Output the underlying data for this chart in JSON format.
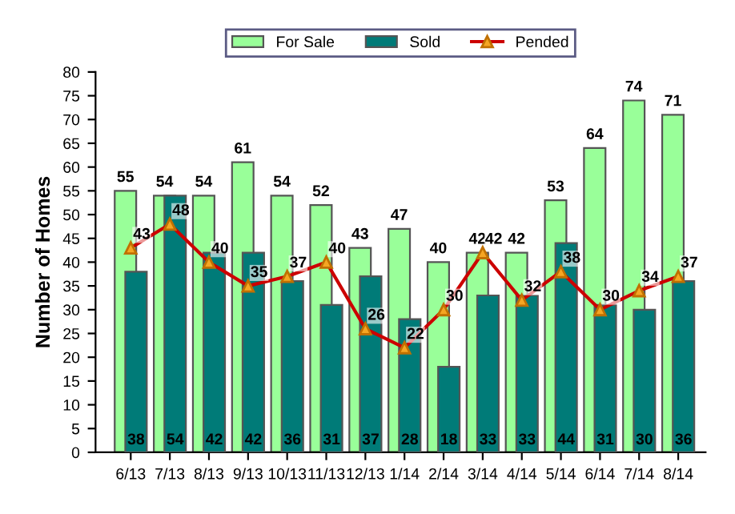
{
  "chart_data": {
    "type": "bar",
    "ylabel": "Number of Homes",
    "categories": [
      "6/13",
      "7/13",
      "8/13",
      "9/13",
      "10/13",
      "11/13",
      "12/13",
      "1/14",
      "2/14",
      "3/14",
      "4/14",
      "5/14",
      "6/14",
      "7/14",
      "8/14"
    ],
    "series": [
      {
        "name": "For Sale",
        "color": "#99ff99",
        "values": [
          55,
          54,
          54,
          61,
          54,
          52,
          43,
          47,
          40,
          42,
          42,
          53,
          64,
          74,
          71
        ]
      },
      {
        "name": "Sold",
        "color": "#007b78",
        "values": [
          38,
          54,
          42,
          42,
          36,
          31,
          37,
          28,
          18,
          33,
          33,
          44,
          31,
          30,
          36
        ]
      },
      {
        "name": "Pended",
        "type": "line",
        "color": "#cc0000",
        "values": [
          43,
          48,
          40,
          35,
          37,
          40,
          26,
          22,
          30,
          42,
          32,
          38,
          30,
          34,
          37
        ]
      }
    ],
    "ylim": [
      0,
      80
    ],
    "yticks": [
      0,
      5,
      10,
      15,
      20,
      25,
      30,
      35,
      40,
      45,
      50,
      55,
      60,
      65,
      70,
      75,
      80
    ],
    "data_labels": true,
    "legend": "top",
    "marker": "triangle",
    "grid": false
  }
}
